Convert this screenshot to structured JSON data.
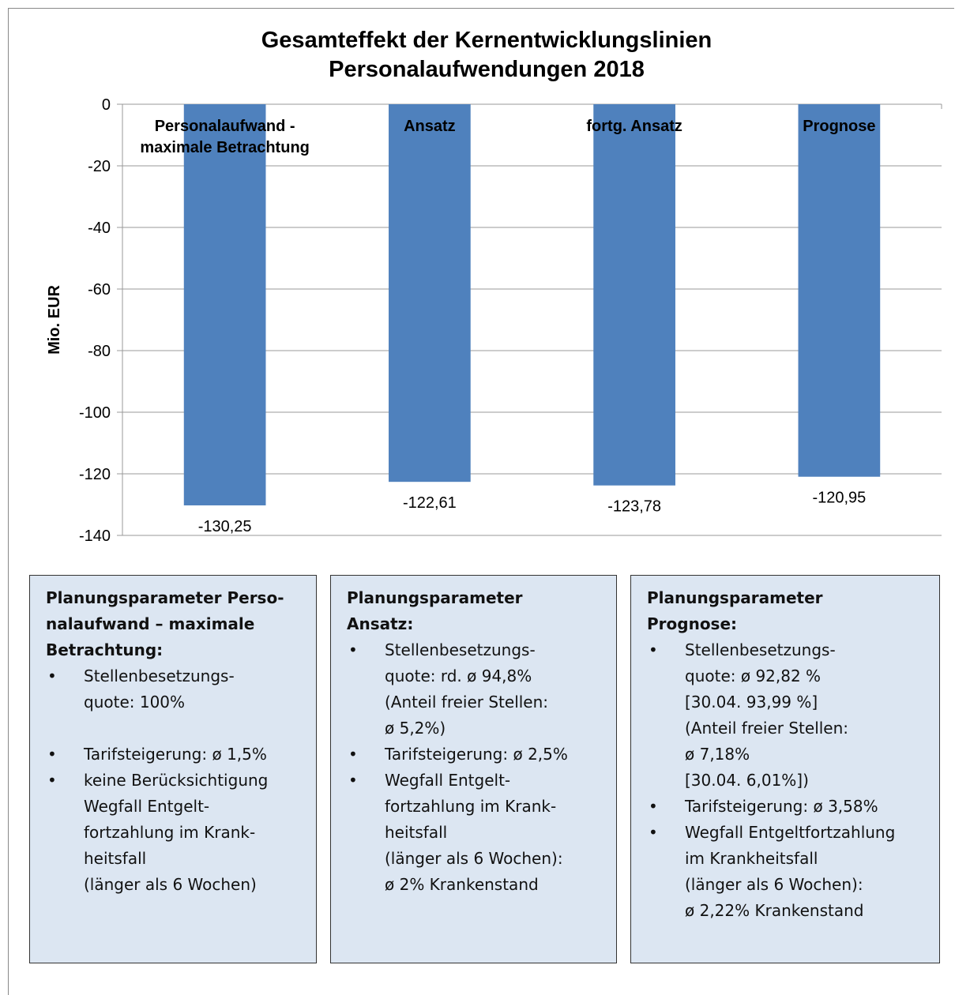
{
  "chart_data": {
    "type": "bar",
    "title": [
      "Gesamteffekt der Kernentwicklungslinien",
      "Personalaufwendungen 2018"
    ],
    "y_label": "Mio. EUR",
    "categories": [
      "Personalaufwand - maximale Betrachtung",
      "Ansatz",
      "fortg. Ansatz",
      "Prognose"
    ],
    "values": [
      -130.25,
      -122.61,
      -123.78,
      -120.95
    ],
    "value_labels": [
      "-130,25",
      "-122,61",
      "-123,78",
      "-120,95"
    ],
    "color": "#4f81bd",
    "ylim": [
      -140,
      0
    ],
    "yticks": [
      0,
      -20,
      -40,
      -60,
      -80,
      -100,
      -120,
      -140
    ],
    "grid": true
  },
  "boxes": [
    {
      "title": [
        "Planungsparameter Perso-",
        "nalaufwand – maximale",
        "Betrachtung:"
      ],
      "items": [
        [
          "Stellenbesetzungs-",
          "quote: 100%"
        ],
        [
          "Tarifsteigerung: ø 1,5%"
        ],
        [
          "keine Berücksichtigung",
          "Wegfall Entgelt-",
          "fortzahlung im Krank-",
          "heitsfall",
          "(länger als 6 Wochen)"
        ]
      ]
    },
    {
      "title": [
        "Planungsparameter",
        "Ansatz:"
      ],
      "items": [
        [
          "Stellenbesetzungs-",
          "quote: rd. ø 94,8%",
          "(Anteil freier Stellen:",
          "ø 5,2%)"
        ],
        [
          "Tarifsteigerung: ø 2,5%"
        ],
        [
          "Wegfall Entgelt-",
          "fortzahlung im Krank-",
          "heitsfall",
          "(länger als 6 Wochen):",
          "ø 2% Krankenstand"
        ]
      ]
    },
    {
      "title": [
        "Planungsparameter",
        "Prognose:"
      ],
      "items": [
        [
          "Stellenbesetzungs-",
          "quote: ø 92,82 %",
          "[30.04. 93,99 %]",
          "(Anteil freier Stellen:",
          "ø 7,18%",
          "[30.04. 6,01%])"
        ],
        [
          "Tarifsteigerung: ø 3,58%"
        ],
        [
          "Wegfall Entgeltfortzahlung",
          "im Krankheitsfall",
          "(länger als 6 Wochen):",
          "ø 2,22% Krankenstand"
        ]
      ]
    }
  ]
}
